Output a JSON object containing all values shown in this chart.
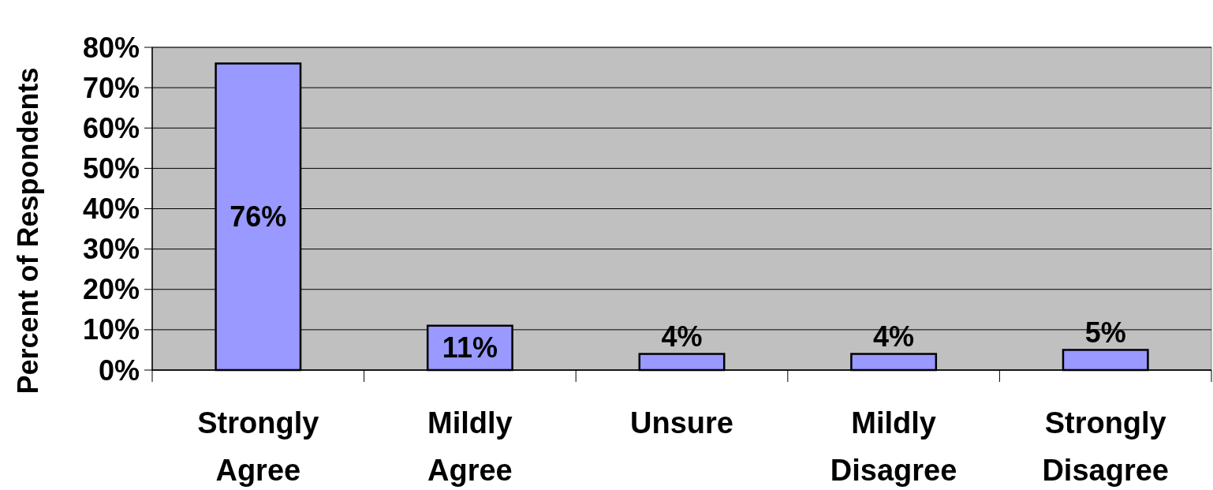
{
  "chart_data": {
    "type": "bar",
    "ylabel": "Percent of Respondents",
    "categories": [
      "Strongly Agree",
      "Mildly Agree",
      "Unsure",
      "Mildly Disagree",
      "Strongly Disagree"
    ],
    "values": [
      76,
      11,
      4,
      4,
      5
    ],
    "value_labels": [
      "76%",
      "11%",
      "4%",
      "4%",
      "5%"
    ],
    "color": "#9999ff",
    "ylim": [
      0,
      80
    ],
    "yticks": [
      {
        "value": 0,
        "label": "0%"
      },
      {
        "value": 10,
        "label": "10%"
      },
      {
        "value": 20,
        "label": "20%"
      },
      {
        "value": 30,
        "label": "30%"
      },
      {
        "value": 40,
        "label": "40%"
      },
      {
        "value": 50,
        "label": "50%"
      },
      {
        "value": 60,
        "label": "60%"
      },
      {
        "value": 70,
        "label": "70%"
      },
      {
        "value": 80,
        "label": "80%"
      }
    ],
    "grid": "y"
  }
}
